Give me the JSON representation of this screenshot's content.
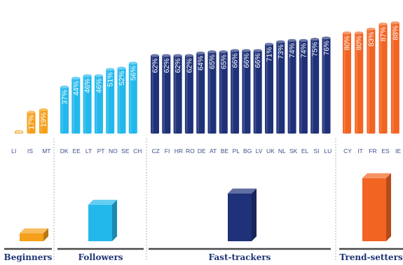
{
  "chart_data": {
    "type": "bar",
    "title": "",
    "xlabel": "",
    "ylabel": "",
    "ylim": [
      0,
      100
    ],
    "value_unit": "%",
    "groups": [
      {
        "name": "Beginners",
        "color": "#f5a01a",
        "categories": [
          "LI",
          "IS",
          "MT"
        ],
        "values": [
          1,
          17,
          19
        ],
        "icon_level": 0.12
      },
      {
        "name": "Followers",
        "color": "#22b8ec",
        "categories": [
          "DK",
          "EE",
          "LT",
          "PT",
          "NO",
          "SE",
          "CH"
        ],
        "values": [
          37,
          44,
          46,
          46,
          51,
          52,
          56
        ],
        "icon_level": 0.55
      },
      {
        "name": "Fast-trackers",
        "color": "#1e3179",
        "categories": [
          "CZ",
          "FI",
          "HR",
          "RO",
          "DE",
          "AT",
          "BE",
          "PL",
          "BG",
          "LV",
          "UK",
          "NL",
          "SK",
          "EL",
          "SI",
          "LU"
        ],
        "values": [
          62,
          62,
          62,
          62,
          64,
          65,
          65,
          66,
          66,
          66,
          71,
          73,
          74,
          74,
          75,
          76
        ],
        "icon_level": 0.72
      },
      {
        "name": "Trend-setters",
        "color": "#f26422",
        "categories": [
          "CY",
          "IT",
          "FR",
          "ES",
          "IE"
        ],
        "values": [
          80,
          80,
          83,
          87,
          88
        ],
        "icon_level": 0.95
      }
    ]
  }
}
